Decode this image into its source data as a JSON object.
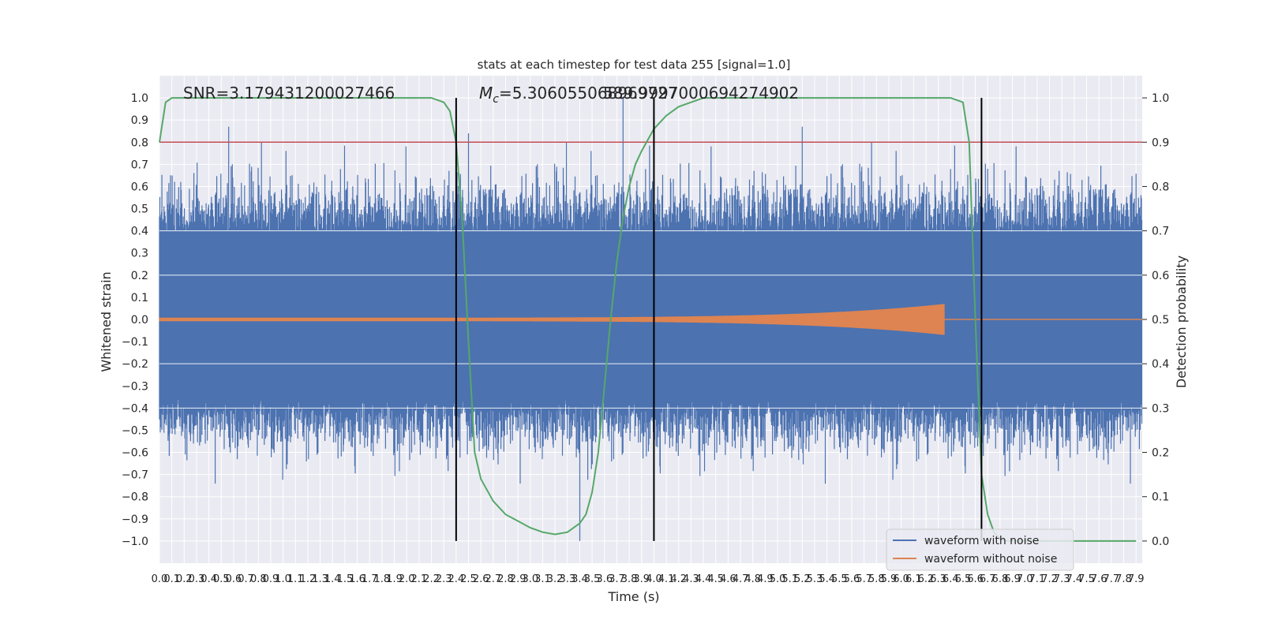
{
  "chart_data": {
    "type": "line",
    "title": "stats at each timestep for test data 255 [signal=1.0]",
    "xlabel": "Time (s)",
    "ylabel_left": "Whitened strain",
    "ylabel_right": "Detection probability",
    "xlim": [
      0.0,
      7.95
    ],
    "ylim_left": [
      -1.1,
      1.1
    ],
    "ylim_right": [
      -0.05,
      1.05
    ],
    "x_ticks": [
      "0.0",
      "0.1",
      "0.2",
      "0.3",
      "0.4",
      "0.5",
      "0.6",
      "0.7",
      "0.8",
      "0.9",
      "1.0",
      "1.1",
      "1.2",
      "1.3",
      "1.4",
      "1.5",
      "1.6",
      "1.7",
      "1.8",
      "1.9",
      "2.0",
      "2.1",
      "2.2",
      "2.3",
      "2.4",
      "2.5",
      "2.6",
      "2.7",
      "2.8",
      "2.9",
      "3.0",
      "3.1",
      "3.2",
      "3.3",
      "3.4",
      "3.5",
      "3.6",
      "3.7",
      "3.8",
      "3.9",
      "4.0",
      "4.1",
      "4.2",
      "4.3",
      "4.4",
      "4.5",
      "4.6",
      "4.7",
      "4.8",
      "4.9",
      "5.0",
      "5.1",
      "5.2",
      "5.3",
      "5.4",
      "5.5",
      "5.6",
      "5.7",
      "5.8",
      "5.9",
      "6.0",
      "6.1",
      "6.2",
      "6.3",
      "6.4",
      "6.5",
      "6.6",
      "6.7",
      "6.8",
      "6.9",
      "7.0",
      "7.1",
      "7.2",
      "7.3",
      "7.4",
      "7.5",
      "7.6",
      "7.7",
      "7.8",
      "7.9"
    ],
    "y_ticks_left": [
      "−1.0",
      "−0.9",
      "−0.8",
      "−0.7",
      "−0.6",
      "−0.5",
      "−0.4",
      "−0.3",
      "−0.2",
      "−0.1",
      "0.0",
      "0.1",
      "0.2",
      "0.3",
      "0.4",
      "0.5",
      "0.6",
      "0.7",
      "0.8",
      "0.9",
      "1.0"
    ],
    "y_ticks_right": [
      "0.0",
      "0.1",
      "0.2",
      "0.3",
      "0.4",
      "0.5",
      "0.6",
      "0.7",
      "0.8",
      "0.9",
      "1.0"
    ],
    "grid": true,
    "legend_position": "lower-right",
    "annotations": {
      "snr": "SNR=3.179431200027466",
      "mc": "=5.306055068969727",
      "mc_symbol": "M",
      "mc_subscript": "c",
      "overlap": "589.9997000694274902"
    },
    "series": [
      {
        "name": "waveform with noise",
        "color": "#4c72b0",
        "kind": "noise",
        "approx_amplitude_range": [
          -1.0,
          1.0
        ],
        "approx_bulk_range": [
          -0.36,
          0.38
        ]
      },
      {
        "name": "waveform without noise",
        "color": "#dd8452",
        "kind": "chirp",
        "merger_time": 6.35,
        "peak_amplitude": 0.07
      },
      {
        "color": "#55a868",
        "axis": "right",
        "x": [
          0.0,
          0.05,
          0.1,
          0.2,
          0.4,
          1.0,
          1.6,
          2.0,
          2.2,
          2.3,
          2.35,
          2.4,
          2.45,
          2.5,
          2.55,
          2.6,
          2.7,
          2.8,
          2.9,
          3.0,
          3.1,
          3.2,
          3.3,
          3.4,
          3.45,
          3.5,
          3.55,
          3.6,
          3.65,
          3.7,
          3.75,
          3.8,
          3.85,
          3.9,
          4.0,
          4.1,
          4.2,
          4.3,
          4.4,
          4.6,
          5.0,
          6.0,
          6.4,
          6.5,
          6.55,
          6.6,
          6.65,
          6.7,
          6.75,
          6.8,
          6.85,
          6.9,
          6.95,
          7.0,
          7.5,
          7.9
        ],
        "y": [
          0.9,
          0.99,
          1.0,
          1.0,
          1.0,
          1.0,
          1.0,
          1.0,
          1.0,
          0.99,
          0.97,
          0.9,
          0.72,
          0.45,
          0.2,
          0.14,
          0.09,
          0.06,
          0.045,
          0.03,
          0.02,
          0.015,
          0.02,
          0.04,
          0.06,
          0.11,
          0.2,
          0.35,
          0.5,
          0.63,
          0.73,
          0.8,
          0.85,
          0.88,
          0.93,
          0.96,
          0.98,
          0.99,
          1.0,
          1.0,
          1.0,
          1.0,
          1.0,
          0.99,
          0.9,
          0.5,
          0.15,
          0.06,
          0.02,
          0.005,
          0.0,
          0.0,
          0.0,
          0.0,
          0.0,
          0.0
        ]
      }
    ],
    "horizontal_lines": [
      {
        "axis": "right",
        "y": 0.9,
        "color": "#c44e52"
      },
      {
        "axis": "left",
        "y": 0.0,
        "color": "#dd8452"
      }
    ],
    "vertical_lines": [
      {
        "x": 2.4,
        "y_range": [
          -1.0,
          1.0
        ],
        "color": "#000000"
      },
      {
        "x": 4.0,
        "y_range": [
          -1.0,
          1.0
        ],
        "color": "#000000"
      },
      {
        "x": 6.65,
        "y_range": [
          -1.0,
          1.0
        ],
        "color": "#000000"
      }
    ],
    "colors": {
      "axes_background": "#eaeaf2",
      "grid": "#ffffff"
    }
  }
}
